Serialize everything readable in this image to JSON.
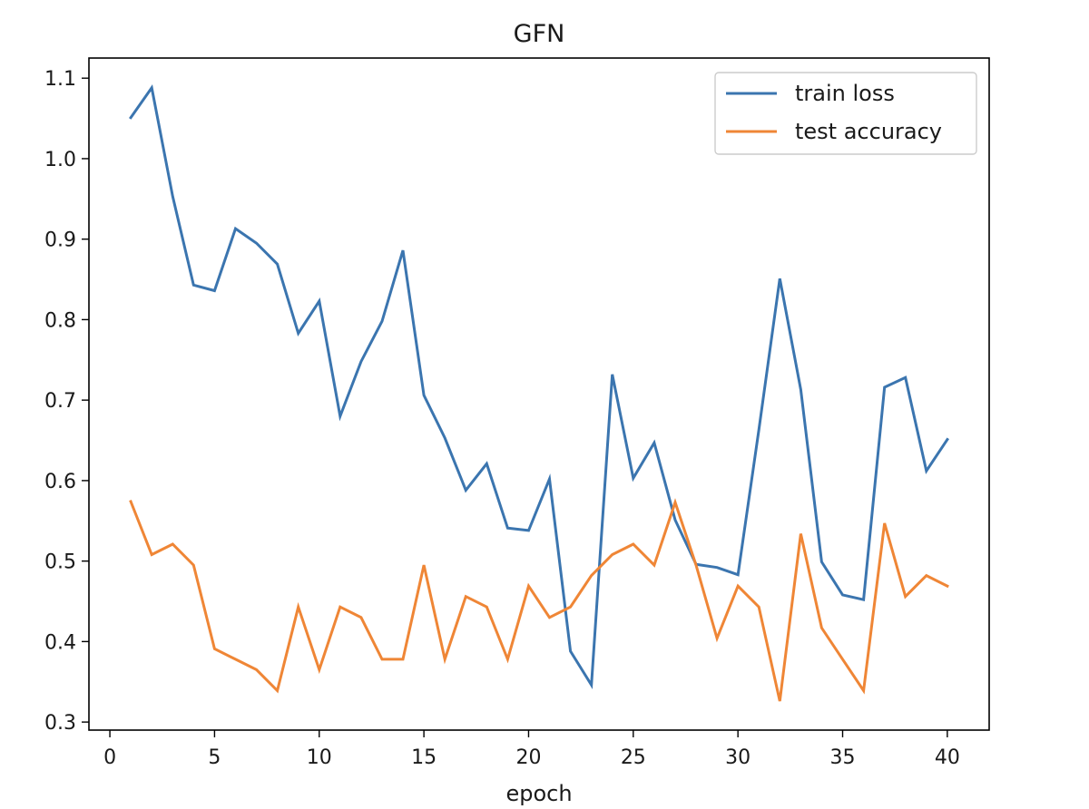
{
  "chart_data": {
    "type": "line",
    "title": "GFN",
    "xlabel": "epoch",
    "ylabel": "",
    "xlim": [
      -1,
      42
    ],
    "ylim": [
      0.29,
      1.125
    ],
    "xticks": [
      0,
      5,
      10,
      15,
      20,
      25,
      30,
      35,
      40
    ],
    "xtick_labels": [
      "0",
      "5",
      "10",
      "15",
      "20",
      "25",
      "30",
      "35",
      "40"
    ],
    "yticks": [
      0.3,
      0.4,
      0.5,
      0.6,
      0.7,
      0.8,
      0.9,
      1.0,
      1.1
    ],
    "ytick_labels": [
      "0.3",
      "0.4",
      "0.5",
      "0.6",
      "0.7",
      "0.8",
      "0.9",
      "1.0",
      "1.1"
    ],
    "grid": false,
    "legend_position": "top-right",
    "x": [
      1,
      2,
      3,
      4,
      5,
      6,
      7,
      8,
      9,
      10,
      11,
      12,
      13,
      14,
      15,
      16,
      17,
      18,
      19,
      20,
      21,
      22,
      23,
      24,
      25,
      26,
      27,
      28,
      29,
      30,
      31,
      32,
      33,
      34,
      35,
      36,
      37,
      38,
      39,
      40
    ],
    "series": [
      {
        "name": "train loss",
        "color": "#3b75af",
        "values": [
          1.051,
          1.088,
          0.953,
          0.843,
          0.836,
          0.913,
          0.895,
          0.869,
          0.783,
          0.823,
          0.68,
          0.748,
          0.798,
          0.886,
          0.706,
          0.653,
          0.588,
          0.621,
          0.541,
          0.538,
          0.602,
          0.388,
          0.346,
          0.732,
          0.603,
          0.647,
          0.551,
          0.496,
          0.492,
          0.483,
          0.663,
          0.851,
          0.713,
          0.499,
          0.458,
          0.452,
          0.716,
          0.728,
          0.612,
          0.651
        ]
      },
      {
        "name": "test accuracy",
        "color": "#ef8636",
        "values": [
          0.574,
          0.508,
          0.521,
          0.495,
          0.391,
          0.378,
          0.365,
          0.339,
          0.443,
          0.365,
          0.443,
          0.43,
          0.378,
          0.378,
          0.495,
          0.378,
          0.456,
          0.443,
          0.378,
          0.469,
          0.43,
          0.443,
          0.482,
          0.508,
          0.521,
          0.495,
          0.573,
          0.495,
          0.404,
          0.469,
          0.443,
          0.326,
          0.534,
          0.417,
          0.378,
          0.339,
          0.547,
          0.456,
          0.482,
          0.469
        ]
      }
    ]
  }
}
